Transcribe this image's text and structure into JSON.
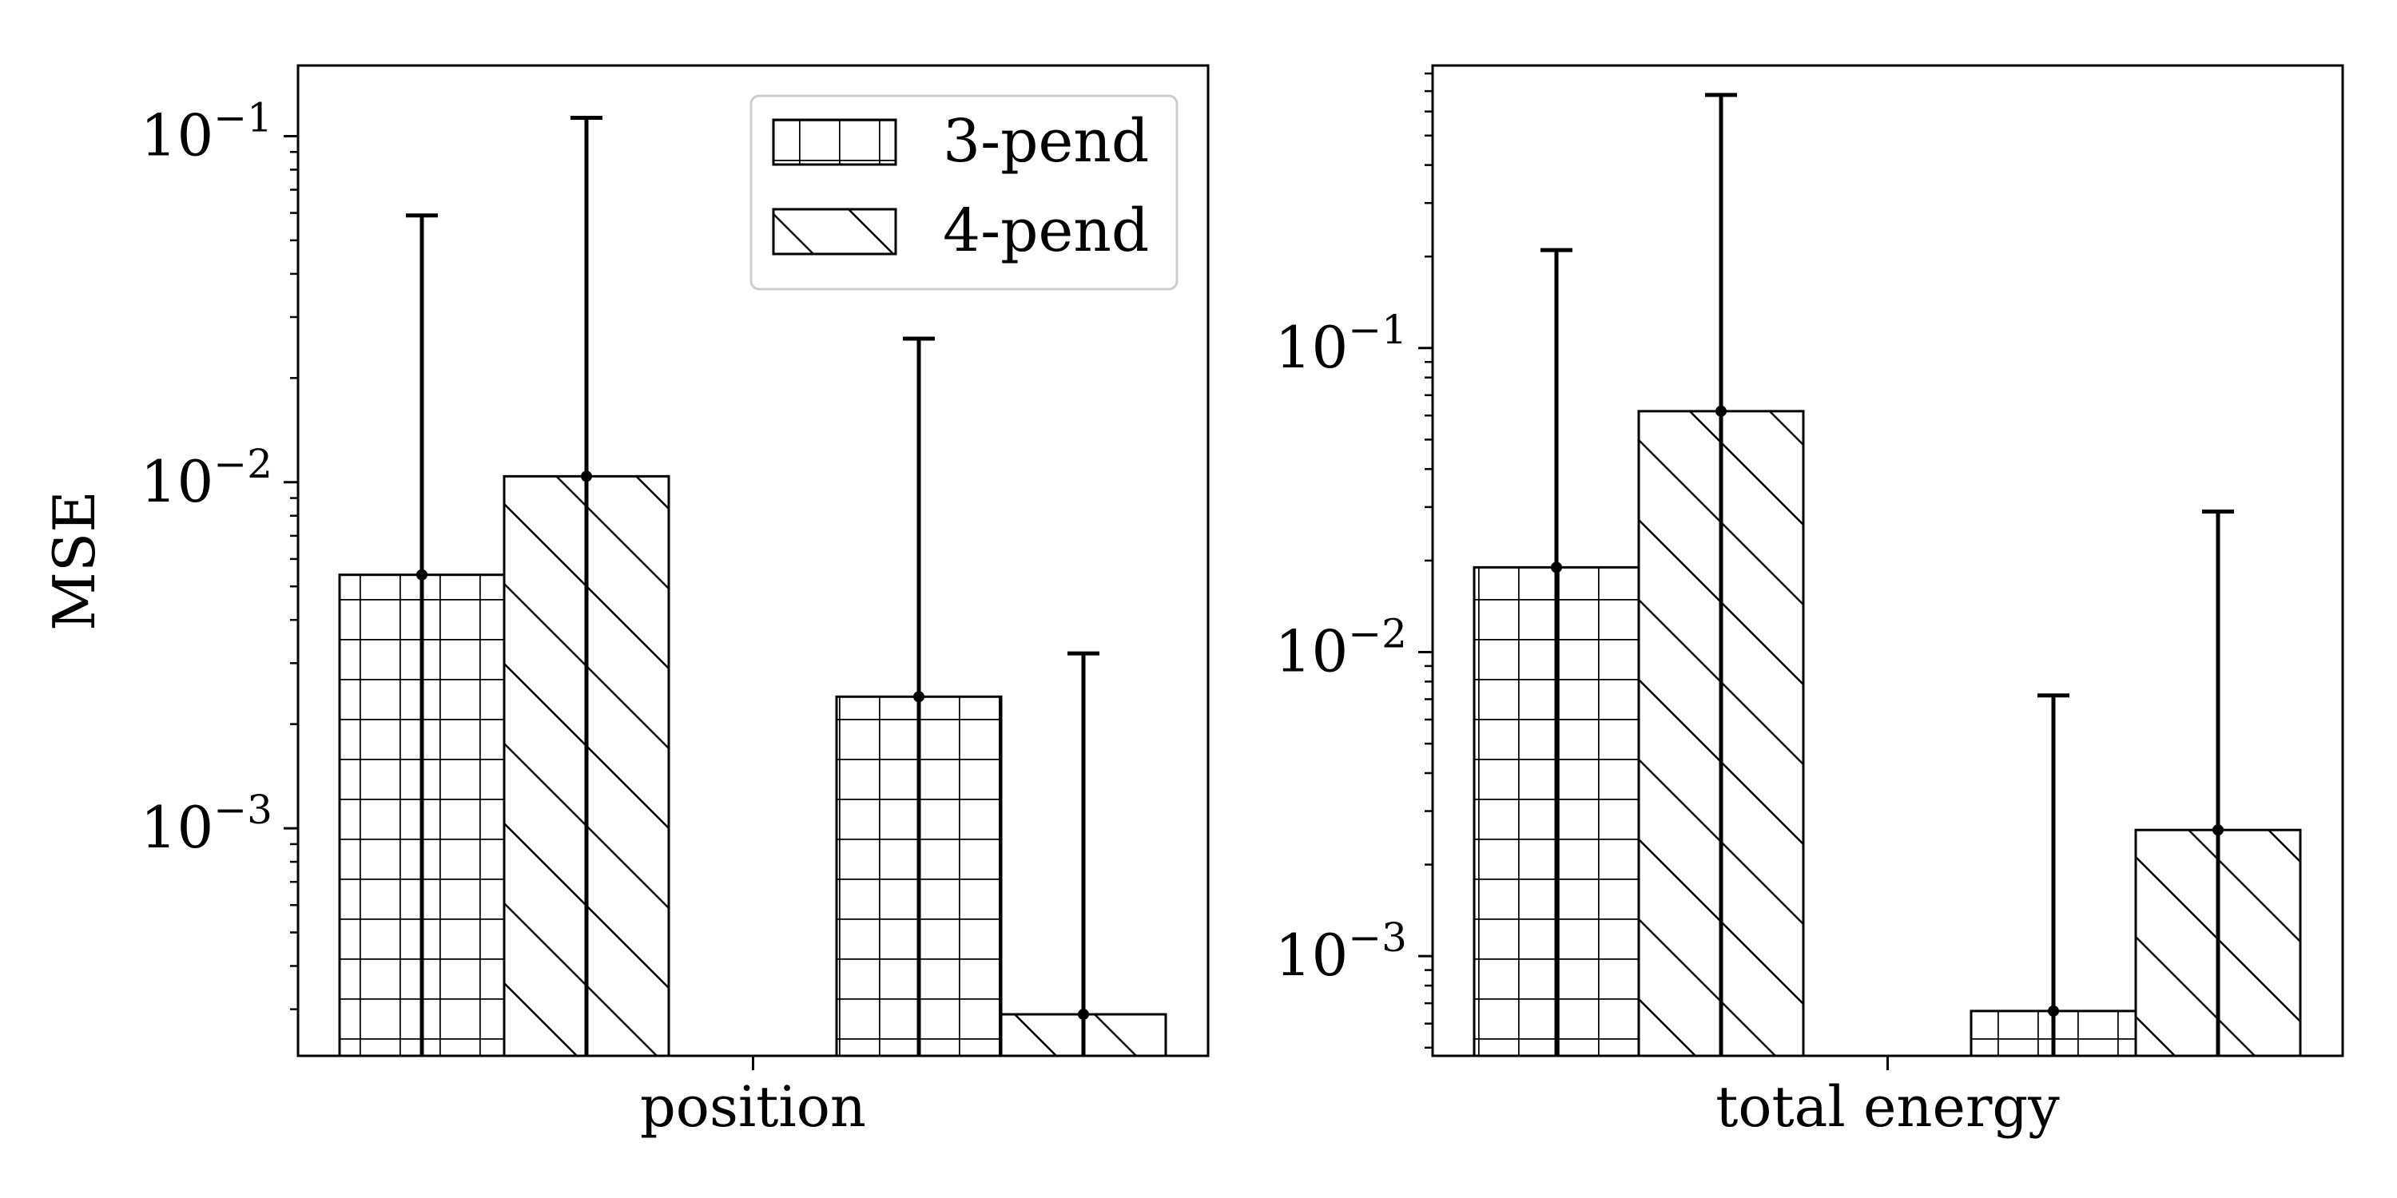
{
  "chart_data": [
    {
      "type": "bar",
      "ylabel": "MSE",
      "yscale": "log",
      "ylim": [
        0.00022,
        0.16
      ],
      "ytick_labels": [
        "10^{-3}",
        "10^{-2}",
        "10^{-1}"
      ],
      "yticks": [
        0.001,
        0.01,
        0.1
      ],
      "categories": [
        "position"
      ],
      "groups": [
        {
          "bars": [
            {
              "series": 0,
              "value": 0.0054,
              "err_high": 0.059
            },
            {
              "series": 1,
              "value": 0.0104,
              "err_high": 0.113
            }
          ]
        },
        {
          "bars": [
            {
              "series": 0,
              "value": 0.0024,
              "err_high": 0.026
            },
            {
              "series": 1,
              "value": 0.00029,
              "err_high": 0.0032
            }
          ]
        }
      ],
      "grid": false,
      "legend": {
        "placement": "top-right"
      }
    },
    {
      "type": "bar",
      "ylabel": "",
      "yscale": "log",
      "ylim": [
        0.00047,
        0.85
      ],
      "ytick_labels": [
        "10^{-3}",
        "10^{-2}",
        "10^{-1}"
      ],
      "yticks": [
        0.001,
        0.01,
        0.1
      ],
      "categories": [
        "total energy"
      ],
      "groups": [
        {
          "bars": [
            {
              "series": 0,
              "value": 0.019,
              "err_high": 0.21
            },
            {
              "series": 1,
              "value": 0.062,
              "err_high": 0.68
            }
          ]
        },
        {
          "bars": [
            {
              "series": 0,
              "value": 0.00066,
              "err_high": 0.0072
            },
            {
              "series": 1,
              "value": 0.0026,
              "err_high": 0.029
            }
          ]
        }
      ],
      "grid": false
    }
  ],
  "legend": [
    {
      "label": "3-pend",
      "hatch": "grid"
    },
    {
      "label": "4-pend",
      "hatch": "diagonal"
    }
  ],
  "colors": {
    "edge": "#000000",
    "face": "#ffffff"
  }
}
